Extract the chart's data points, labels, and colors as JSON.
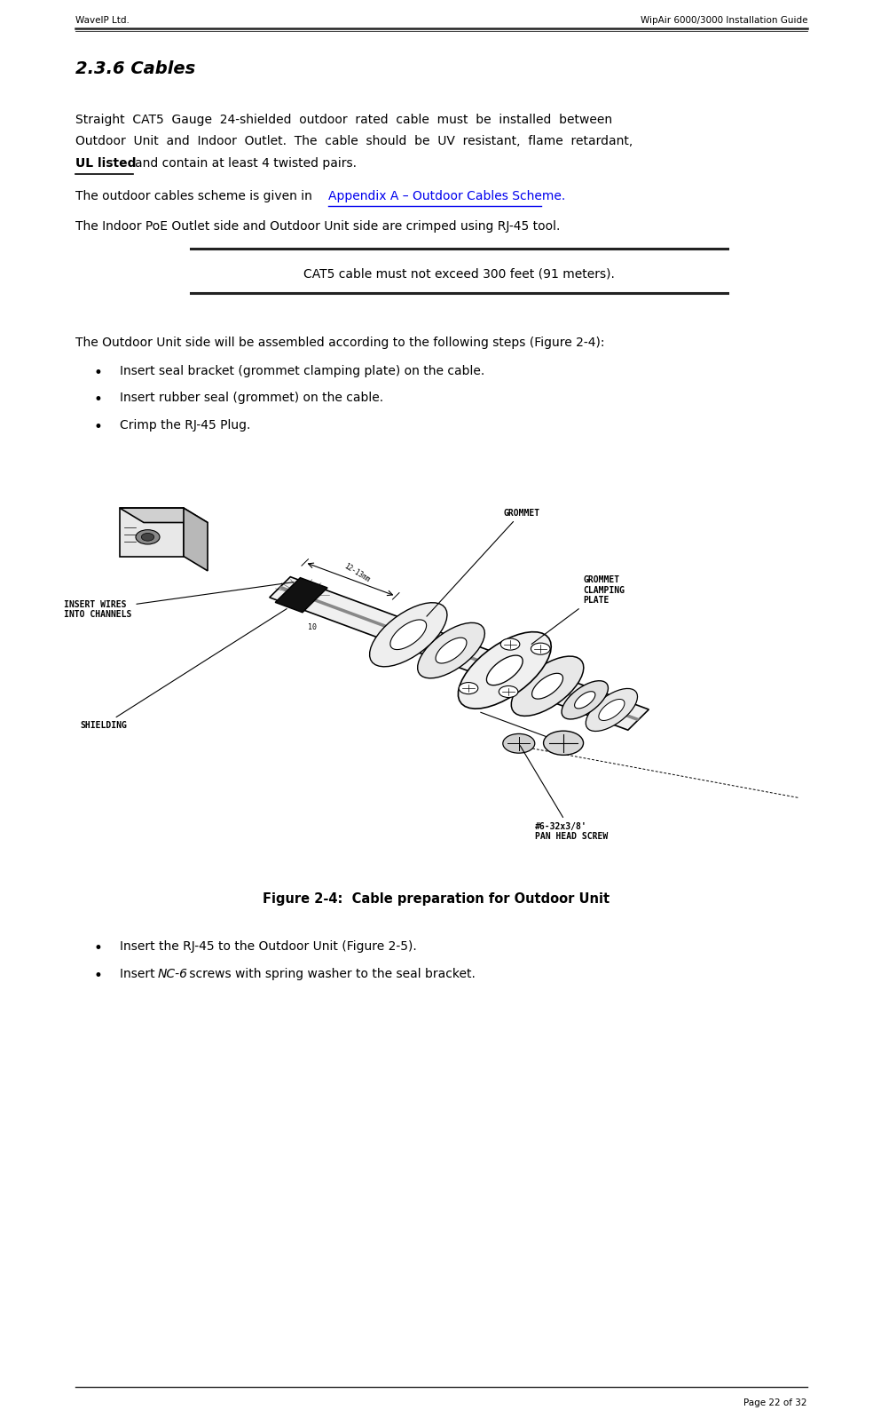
{
  "header_left": "WaveIP Ltd.",
  "header_right": "WipAir 6000/3000 Installation Guide",
  "footer_right": "Page 22 of 32",
  "section_title": "2.3.6 Cables",
  "para3": "The Indoor PoE Outlet side and Outdoor Unit side are crimped using RJ-45 tool.",
  "note": "CAT5 cable must not exceed 300 feet (91 meters).",
  "para4": "The Outdoor Unit side will be assembled according to the following steps (Figure 2-4):",
  "bullets1": [
    "Insert seal bracket (grommet clamping plate) on the cable.",
    "Insert rubber seal (grommet) on the cable.",
    "Crimp the RJ-45 Plug."
  ],
  "figure_caption": "Figure 2-4:  Cable preparation for Outdoor Unit",
  "bullets2": [
    "Insert the RJ-45 to the Outdoor Unit (Figure 2-5).",
    "Insert NC-6 screws with spring washer to the seal bracket."
  ],
  "background_color": "#ffffff",
  "text_color": "#000000",
  "link_color": "#0000ee"
}
